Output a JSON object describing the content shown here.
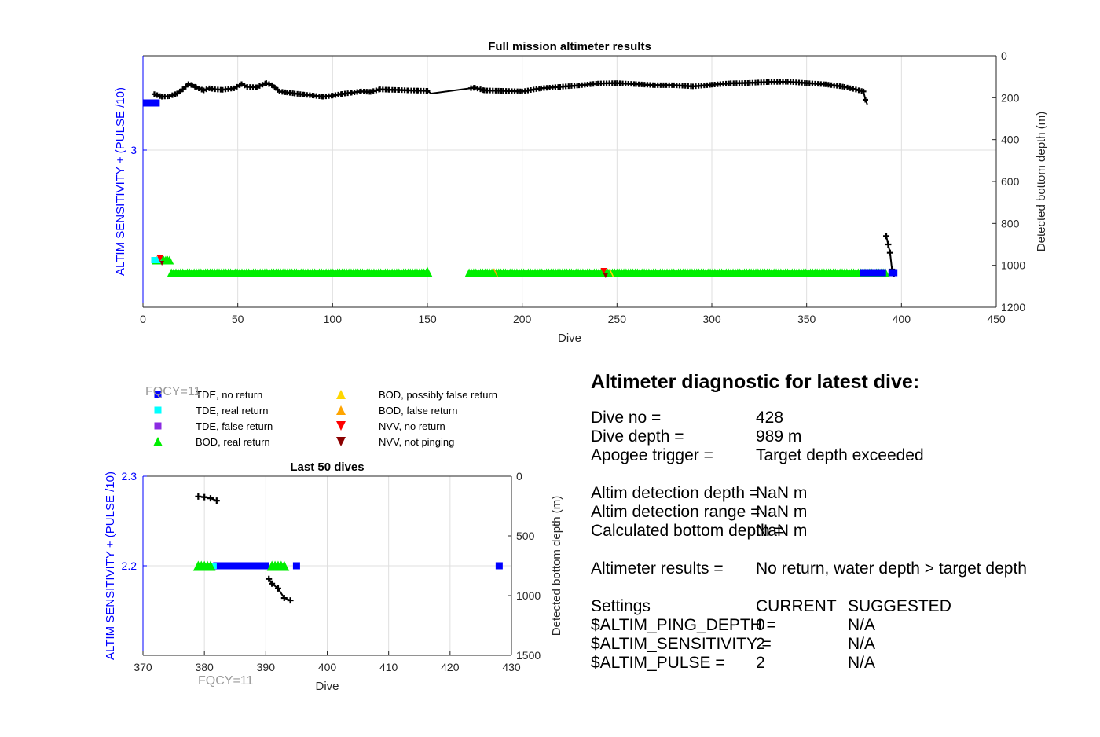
{
  "chart_data": [
    {
      "type": "scatter",
      "title": "Full mission altimeter results",
      "xlabel": "Dive",
      "ylabel_left": "ALTIM SENSITIVITY + (PULSE /10)",
      "ylabel_right": "Detected bottom depth (m)",
      "xlim": [
        0,
        450
      ],
      "x_ticks": [
        "0",
        "50",
        "100",
        "150",
        "200",
        "250",
        "300",
        "350",
        "400",
        "450"
      ],
      "left_ylim": [
        2.0,
        3.6
      ],
      "left_y_ticks": [
        "3"
      ],
      "right_ylim": [
        0,
        1200
      ],
      "right_y_ticks": [
        "0",
        "200",
        "400",
        "600",
        "800",
        "1000",
        "1200"
      ],
      "grid": true,
      "bottom_depth_series": {
        "name": "Detected bottom depth",
        "x": [
          6,
          10,
          14,
          18,
          21,
          24,
          26,
          28,
          32,
          35,
          38,
          42,
          48,
          52,
          55,
          60,
          65,
          68,
          72,
          76,
          80,
          85,
          90,
          95,
          100,
          105,
          110,
          115,
          120,
          125,
          130,
          135,
          140,
          145,
          150,
          152,
          175,
          180,
          190,
          200,
          210,
          220,
          230,
          240,
          250,
          260,
          270,
          280,
          290,
          300,
          310,
          320,
          330,
          340,
          350,
          360,
          370,
          376,
          380,
          381,
          382,
          392,
          393,
          394,
          395,
          396
        ],
        "y": [
          183,
          195,
          193,
          180,
          160,
          135,
          140,
          150,
          165,
          155,
          160,
          162,
          155,
          135,
          148,
          150,
          130,
          140,
          170,
          175,
          180,
          185,
          190,
          195,
          190,
          182,
          176,
          170,
          172,
          160,
          162,
          163,
          165,
          166,
          167,
          180,
          152,
          165,
          167,
          170,
          155,
          148,
          141,
          132,
          130,
          135,
          140,
          140,
          146,
          138,
          131,
          129,
          125,
          124,
          130,
          136,
          148,
          161,
          170,
          210,
          232,
          860,
          900,
          940,
          1020,
          1040
        ]
      },
      "markers": {
        "tde_no_return": {
          "x": [
            2,
            3,
            4,
            5,
            6,
            7,
            380,
            381,
            382,
            383,
            384,
            385,
            386,
            387,
            388,
            389,
            390,
            395,
            396
          ],
          "y": 3.3
        },
        "tde_real_return": {
          "x": [
            6,
            7,
            8
          ],
          "y": 2.3
        },
        "bod_real_return": {
          "x_start": 15,
          "x_end": 150,
          "x2_start": 172,
          "x2_end": 392,
          "y": 2.22
        },
        "bod_real_return_early": {
          "x": [
            7,
            8,
            9,
            10,
            11,
            12,
            13,
            14
          ],
          "y": 2.3
        },
        "nvv_no_return": {
          "x": [
            9,
            243
          ],
          "y": [
            2.3,
            2.22
          ]
        },
        "nvv_not_pinging": {
          "x": [
            10,
            244
          ],
          "y": [
            2.29,
            2.21
          ]
        }
      }
    },
    {
      "type": "scatter",
      "title": "Last 50 dives",
      "xlabel": "Dive",
      "ylabel_left": "ALTIM SENSITIVITY + (PULSE /10)",
      "ylabel_right": "Detected bottom depth (m)",
      "xlim": [
        370,
        430
      ],
      "x_ticks": [
        "370",
        "380",
        "390",
        "400",
        "410",
        "420",
        "430"
      ],
      "left_ylim": [
        2.1,
        2.3
      ],
      "left_y_ticks": [
        "2.2",
        "2.3"
      ],
      "right_ylim": [
        0,
        1500
      ],
      "right_y_ticks": [
        "0",
        "500",
        "1000",
        "1500"
      ],
      "grid": true,
      "bottom_depth_series": {
        "name": "Detected bottom depth",
        "x": [
          379,
          380,
          381,
          382,
          390.5,
          391,
          392,
          393,
          394
        ],
        "y": [
          170,
          175,
          185,
          205,
          860,
          900,
          940,
          1020,
          1040
        ]
      },
      "tde_no_return": {
        "x": [
          382,
          383,
          384,
          385,
          386,
          387,
          388,
          389,
          390,
          395,
          428
        ],
        "y": 2.2
      },
      "tde_real_return": {
        "x": [
          381.5
        ],
        "y": 2.2
      },
      "bod_real_return": {
        "x": [
          379,
          380,
          381,
          391,
          392,
          393
        ],
        "y": 2.2
      }
    }
  ],
  "legend": {
    "items": [
      {
        "label": "TDE, no return",
        "color": "#0000ff",
        "marker": "square"
      },
      {
        "label": "TDE, real return",
        "color": "#00ffff",
        "marker": "square"
      },
      {
        "label": "TDE, false return",
        "color": "#8b2be2",
        "marker": "square"
      },
      {
        "label": "BOD, real return",
        "color": "#00ee00",
        "marker": "triangle-up"
      },
      {
        "label": "BOD, possibly false return",
        "color": "#ffd700",
        "marker": "triangle-up"
      },
      {
        "label": "BOD, false return",
        "color": "#ffa500",
        "marker": "triangle-up"
      },
      {
        "label": "NVV, no return",
        "color": "#ff0000",
        "marker": "triangle-down"
      },
      {
        "label": "NVV, not pinging",
        "color": "#8b0000",
        "marker": "triangle-down"
      }
    ]
  },
  "fqcy_label": "FQCY=11",
  "diagnostic": {
    "title": "Altimeter diagnostic for latest dive:",
    "rows": [
      {
        "label": "Dive no =",
        "value": "428"
      },
      {
        "label": "Dive depth =",
        "value": "989 m"
      },
      {
        "label": "Apogee trigger =",
        "value": "Target depth exceeded"
      },
      {
        "label": "Altim detection depth =",
        "value": "NaN m"
      },
      {
        "label": "Altim detection range =",
        "value": "NaN m"
      },
      {
        "label": "Calculated bottom depth =",
        "value": "NaN m"
      },
      {
        "label": "Altimeter results =",
        "value": "No return, water depth > target depth"
      }
    ],
    "settings_header": {
      "label": "Settings",
      "current": "CURRENT",
      "suggested": "SUGGESTED"
    },
    "settings": [
      {
        "label": "$ALTIM_PING_DEPTH =",
        "current": "0",
        "suggested": "N/A"
      },
      {
        "label": "$ALTIM_SENSITIVITY =",
        "current": "2",
        "suggested": "N/A"
      },
      {
        "label": "$ALTIM_PULSE =",
        "current": "2",
        "suggested": "N/A"
      }
    ]
  }
}
